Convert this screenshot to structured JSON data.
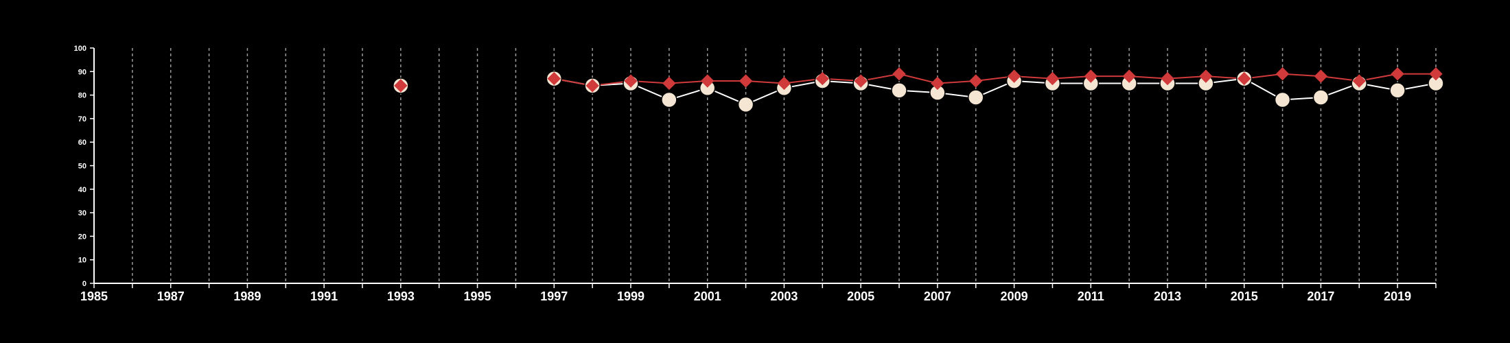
{
  "chart_data": {
    "type": "line",
    "title": "",
    "xlabel": "",
    "ylabel": "",
    "xlim": [
      1985,
      2020
    ],
    "ylim": [
      0,
      100
    ],
    "yticks": [
      "0",
      "10",
      "20",
      "30",
      "40",
      "50",
      "60",
      "70",
      "80",
      "90",
      "100"
    ],
    "xtick_labels": [
      "1985",
      "1987",
      "1989",
      "1991",
      "1993",
      "1995",
      "1997",
      "1999",
      "2001",
      "2003",
      "2005",
      "2007",
      "2009",
      "2011",
      "2013",
      "2015",
      "2017",
      "2019"
    ],
    "grid": "vertical dashed every year",
    "colors": {
      "background": "#000000",
      "axis": "#ffffff",
      "grid": "#9a9a9a",
      "series_circle_fill": "#f5e6d3",
      "series_circle_line": "#ffffff",
      "series_diamond": "#d03a3a"
    },
    "series": [
      {
        "marker": "circle",
        "points": [
          [
            1993,
            84
          ],
          [
            1997,
            87
          ],
          [
            1998,
            84
          ],
          [
            1999,
            85
          ],
          [
            2000,
            78
          ],
          [
            2001,
            83
          ],
          [
            2002,
            76
          ],
          [
            2003,
            83
          ],
          [
            2004,
            86
          ],
          [
            2005,
            85
          ],
          [
            2006,
            82
          ],
          [
            2007,
            81
          ],
          [
            2008,
            79
          ],
          [
            2009,
            86
          ],
          [
            2010,
            85
          ],
          [
            2011,
            85
          ],
          [
            2012,
            85
          ],
          [
            2013,
            85
          ],
          [
            2014,
            85
          ],
          [
            2015,
            87
          ],
          [
            2016,
            78
          ],
          [
            2017,
            79
          ],
          [
            2018,
            85
          ],
          [
            2019,
            82
          ],
          [
            2020,
            85
          ]
        ]
      },
      {
        "marker": "diamond",
        "points": [
          [
            1993,
            84
          ],
          [
            1997,
            87
          ],
          [
            1998,
            84
          ],
          [
            1999,
            86
          ],
          [
            2000,
            85
          ],
          [
            2001,
            86
          ],
          [
            2002,
            86
          ],
          [
            2003,
            85
          ],
          [
            2004,
            87
          ],
          [
            2005,
            86
          ],
          [
            2006,
            89
          ],
          [
            2007,
            85
          ],
          [
            2008,
            86
          ],
          [
            2009,
            88
          ],
          [
            2010,
            87
          ],
          [
            2011,
            88
          ],
          [
            2012,
            88
          ],
          [
            2013,
            87
          ],
          [
            2014,
            88
          ],
          [
            2015,
            87
          ],
          [
            2016,
            89
          ],
          [
            2017,
            88
          ],
          [
            2018,
            86
          ],
          [
            2019,
            89
          ],
          [
            2020,
            89
          ]
        ]
      }
    ]
  }
}
